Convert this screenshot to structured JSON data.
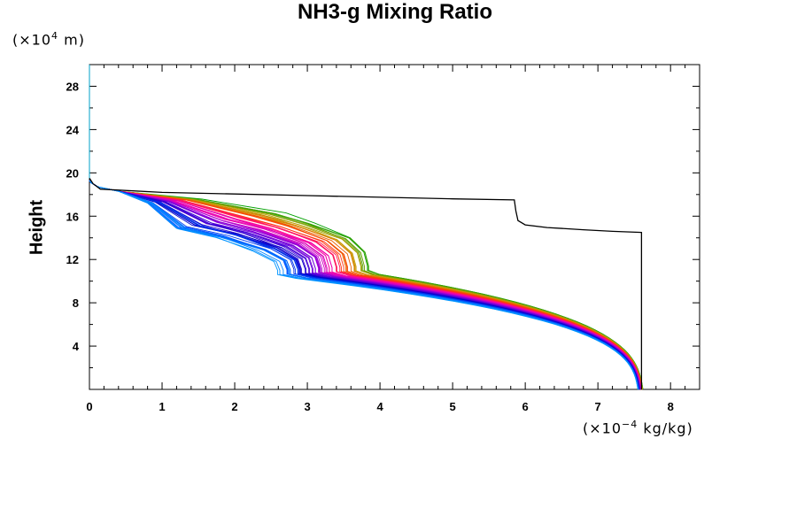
{
  "chart_data": {
    "type": "line",
    "title": "NH3-g Mixing Ratio",
    "ylabel": "Height",
    "yunit_prefix": "(×10",
    "yunit_exp": "4",
    "yunit_suffix": " m)",
    "xunit_prefix": "(×10",
    "xunit_exp": "−4",
    "xunit_suffix": " kg/kg)",
    "xlim": [
      0,
      8.4
    ],
    "ylim": [
      0,
      30
    ],
    "xticks": [
      0,
      1,
      2,
      3,
      4,
      5,
      6,
      7,
      8
    ],
    "yticks": [
      4,
      8,
      12,
      16,
      20,
      24,
      28
    ],
    "initial_profile": {
      "color": "#000000",
      "x": [
        0.0,
        0.05,
        0.15,
        1.0,
        3.0,
        5.0,
        5.85,
        5.87,
        5.9,
        6.0,
        6.3,
        6.8,
        7.2,
        7.6,
        7.6
      ],
      "y": [
        19.5,
        19.0,
        18.5,
        18.2,
        17.9,
        17.6,
        17.5,
        16.5,
        15.6,
        15.2,
        14.95,
        14.75,
        14.6,
        14.5,
        0.0
      ]
    },
    "ensemble": {
      "count": 60,
      "colors_warm_to_cool": [
        "#00a000",
        "#c8a000",
        "#ff3c00",
        "#ff00a0",
        "#b400d2",
        "#6400dc",
        "#0000c8",
        "#0050ff",
        "#0096ff"
      ],
      "surface_x_range": [
        7.55,
        7.62
      ],
      "plateau_onset_x_range": [
        2.65,
        3.9
      ],
      "plateau_heights_range": [
        10.6,
        11.0
      ],
      "upper_bend_x_range": [
        1.2,
        2.6
      ],
      "upper_bend_y_range": [
        14.8,
        16.3
      ]
    }
  }
}
